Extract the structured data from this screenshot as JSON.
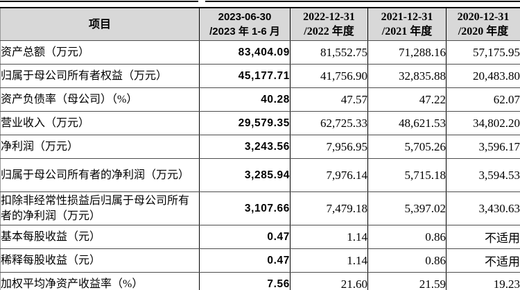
{
  "table": {
    "header": {
      "item_col": "项目",
      "periods": [
        {
          "line1": "2023-06-30",
          "line2": "/2023 年 1-6 月"
        },
        {
          "line1": "2022-12-31",
          "line2": "/2022 年度"
        },
        {
          "line1": "2021-12-31",
          "line2": "/2021 年度"
        },
        {
          "line1": "2020-12-31",
          "line2": "/2020 年度"
        }
      ]
    },
    "rows": [
      {
        "label": "资产总额（万元）",
        "values": [
          "83,404.09",
          "81,552.75",
          "71,288.16",
          "57,175.95"
        ]
      },
      {
        "label": "归属于母公司所有者权益（万元）",
        "values": [
          "45,177.71",
          "41,756.90",
          "32,835.88",
          "20,483.80"
        ]
      },
      {
        "label": "资产负债率（母公司）（%）",
        "values": [
          "40.28",
          "47.57",
          "47.22",
          "62.07"
        ]
      },
      {
        "label": "营业收入（万元）",
        "values": [
          "29,579.35",
          "62,725.33",
          "48,621.53",
          "34,802.20"
        ]
      },
      {
        "label": "净利润（万元）",
        "values": [
          "3,243.56",
          "7,956.95",
          "5,705.26",
          "3,596.17"
        ]
      },
      {
        "label": "归属于母公司所有者的净利润（万元）",
        "values": [
          "3,285.94",
          "7,976.14",
          "5,715.18",
          "3,594.53"
        ]
      },
      {
        "label": "扣除非经常性损益后归属于母公司所有者的净利润（万元）",
        "values": [
          "3,107.66",
          "7,479.18",
          "5,397.02",
          "3,430.63"
        ]
      },
      {
        "label": "基本每股收益（元）",
        "values": [
          "0.47",
          "1.14",
          "0.86",
          "不适用"
        ]
      },
      {
        "label": "稀释每股收益（元）",
        "values": [
          "0.47",
          "1.14",
          "0.86",
          "不适用"
        ]
      },
      {
        "label": "加权平均净资产收益率（%）",
        "values": [
          "7.56",
          "21.60",
          "21.59",
          "19.23"
        ]
      }
    ]
  },
  "colors": {
    "header_bg": "#d8d8d8",
    "grid_line": "#000000",
    "row_line": "#4d4d4d"
  }
}
